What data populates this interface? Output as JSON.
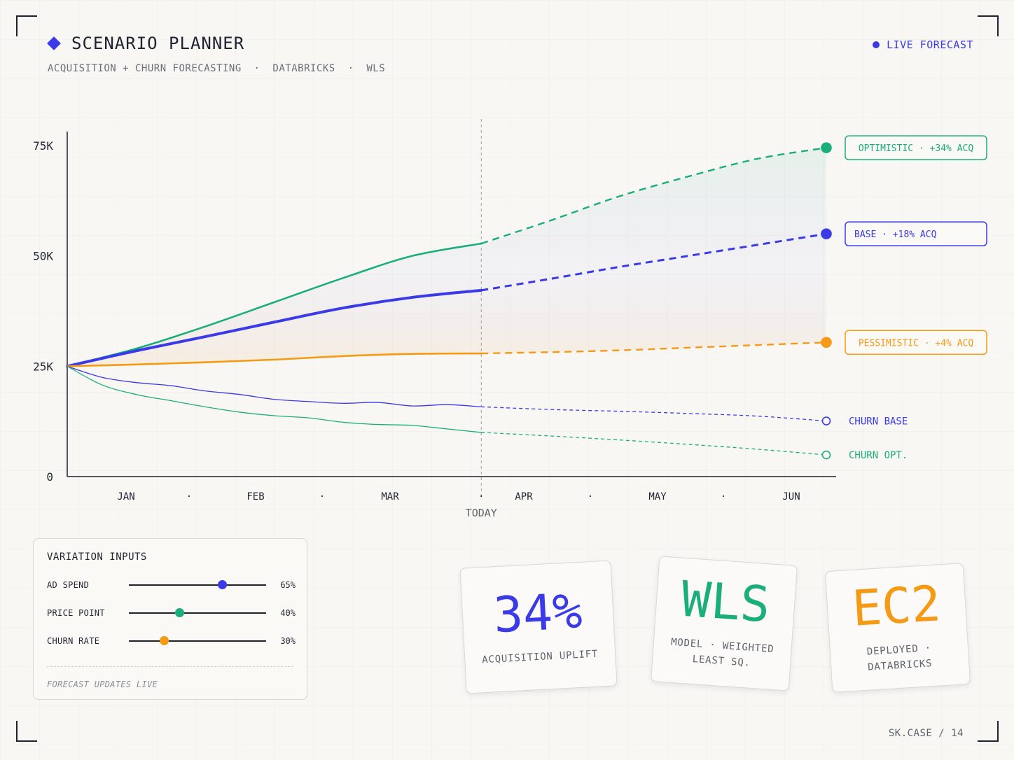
{
  "header": {
    "title": "SCENARIO PLANNER",
    "subtitle": "ACQUISITION + CHURN FORECASTING  ·  DATABRICKS  ·  WLS",
    "live_label": "LIVE FORECAST"
  },
  "colors": {
    "accent": "#3a3ae8",
    "optimistic": "#1aae7a",
    "base": "#3a3ae8",
    "pessimistic": "#f59a14",
    "ink": "#1f2330"
  },
  "chart_data": {
    "type": "line",
    "x": [
      "JAN",
      "FEB",
      "MAR",
      "TODAY",
      "APR",
      "MAY",
      "JUN"
    ],
    "xlim": [
      0,
      5.75
    ],
    "ylim": [
      0,
      75000
    ],
    "y_ticks": [
      "75K",
      "50K",
      "25K",
      "0"
    ],
    "y_tick_values": [
      75000,
      50000,
      25000,
      0
    ],
    "today_label": "TODAY",
    "today_x": 3.0,
    "grid": false,
    "series": [
      {
        "name": "OPTIMISTIC",
        "tag": "OPTIMISTIC  ·  +34% ACQ",
        "color": "#1aae7a",
        "style": "solid-then-dashed",
        "x": [
          0,
          0.5,
          1.0,
          1.5,
          2.0,
          2.5,
          3.0,
          3.5,
          4.0,
          4.5,
          5.0,
          5.5
        ],
        "y": [
          25000,
          29000,
          34000,
          39500,
          45000,
          50000,
          52800,
          58000,
          63500,
          68000,
          72000,
          74500
        ]
      },
      {
        "name": "BASE",
        "tag": "BASE  ·  +18% ACQ",
        "color": "#3a3ae8",
        "style": "solid-then-dashed",
        "x": [
          0,
          0.5,
          1.0,
          1.5,
          2.0,
          2.5,
          3.0,
          3.5,
          4.0,
          4.5,
          5.0,
          5.5
        ],
        "y": [
          25000,
          28500,
          31700,
          35000,
          38200,
          40600,
          42200,
          44800,
          47500,
          50000,
          52500,
          55000
        ]
      },
      {
        "name": "PESSIMISTIC",
        "tag": "PESSIMISTIC  ·  +4% ACQ",
        "color": "#f59a14",
        "style": "solid-then-dashed",
        "x": [
          0,
          0.5,
          1.0,
          1.5,
          2.0,
          2.5,
          3.0,
          3.5,
          4.0,
          4.5,
          5.0,
          5.5
        ],
        "y": [
          25000,
          25400,
          25900,
          26500,
          27300,
          27800,
          27900,
          28200,
          28600,
          29200,
          29800,
          30400
        ]
      },
      {
        "name": "CHURN BASE",
        "tag": "CHURN BASE",
        "color": "#3a3ae8",
        "style": "thin-solid-then-dashed",
        "x": [
          0,
          0.25,
          0.5,
          0.75,
          1.0,
          1.25,
          1.5,
          1.75,
          2.0,
          2.25,
          2.5,
          2.75,
          3.0,
          3.5,
          4.0,
          4.5,
          5.0,
          5.5
        ],
        "y": [
          25000,
          22500,
          21300,
          20600,
          19400,
          18600,
          17500,
          17000,
          16600,
          16800,
          16000,
          16300,
          15800,
          15200,
          14800,
          14300,
          13700,
          12600
        ]
      },
      {
        "name": "CHURN OPT.",
        "tag": "CHURN OPT.",
        "color": "#1aae7a",
        "style": "thin-solid-then-dashed",
        "x": [
          0,
          0.25,
          0.5,
          0.75,
          1.0,
          1.25,
          1.5,
          1.75,
          2.0,
          2.25,
          2.5,
          2.75,
          3.0,
          3.5,
          4.0,
          4.5,
          5.0,
          5.5
        ],
        "y": [
          25000,
          20800,
          18600,
          17200,
          15800,
          14600,
          13800,
          13300,
          12300,
          11800,
          11600,
          10800,
          10000,
          9200,
          8300,
          7300,
          6200,
          4900
        ]
      }
    ]
  },
  "inputs": {
    "title": "VARIATION INPUTS",
    "items": [
      {
        "label": "AD SPEND",
        "value": "65%",
        "level": 0.68,
        "color": "#3a3ae8"
      },
      {
        "label": "PRICE POINT",
        "value": "40%",
        "level": 0.37,
        "color": "#1aae7a"
      },
      {
        "label": "CHURN RATE",
        "value": "30%",
        "level": 0.26,
        "color": "#f59a14"
      }
    ],
    "footnote": "FORECAST UPDATES LIVE"
  },
  "cards": [
    {
      "big": "34%",
      "caption": "ACQUISITION UPLIFT",
      "color": "#3a3ae8"
    },
    {
      "big": "WLS",
      "caption": "MODEL  ·  WEIGHTED\nLEAST SQ.",
      "color": "#1aae7a"
    },
    {
      "big": "EC2",
      "caption": "DEPLOYED  ·\nDATABRICKS",
      "color": "#f59a14"
    }
  ],
  "footer": "SK.CASE / 14"
}
